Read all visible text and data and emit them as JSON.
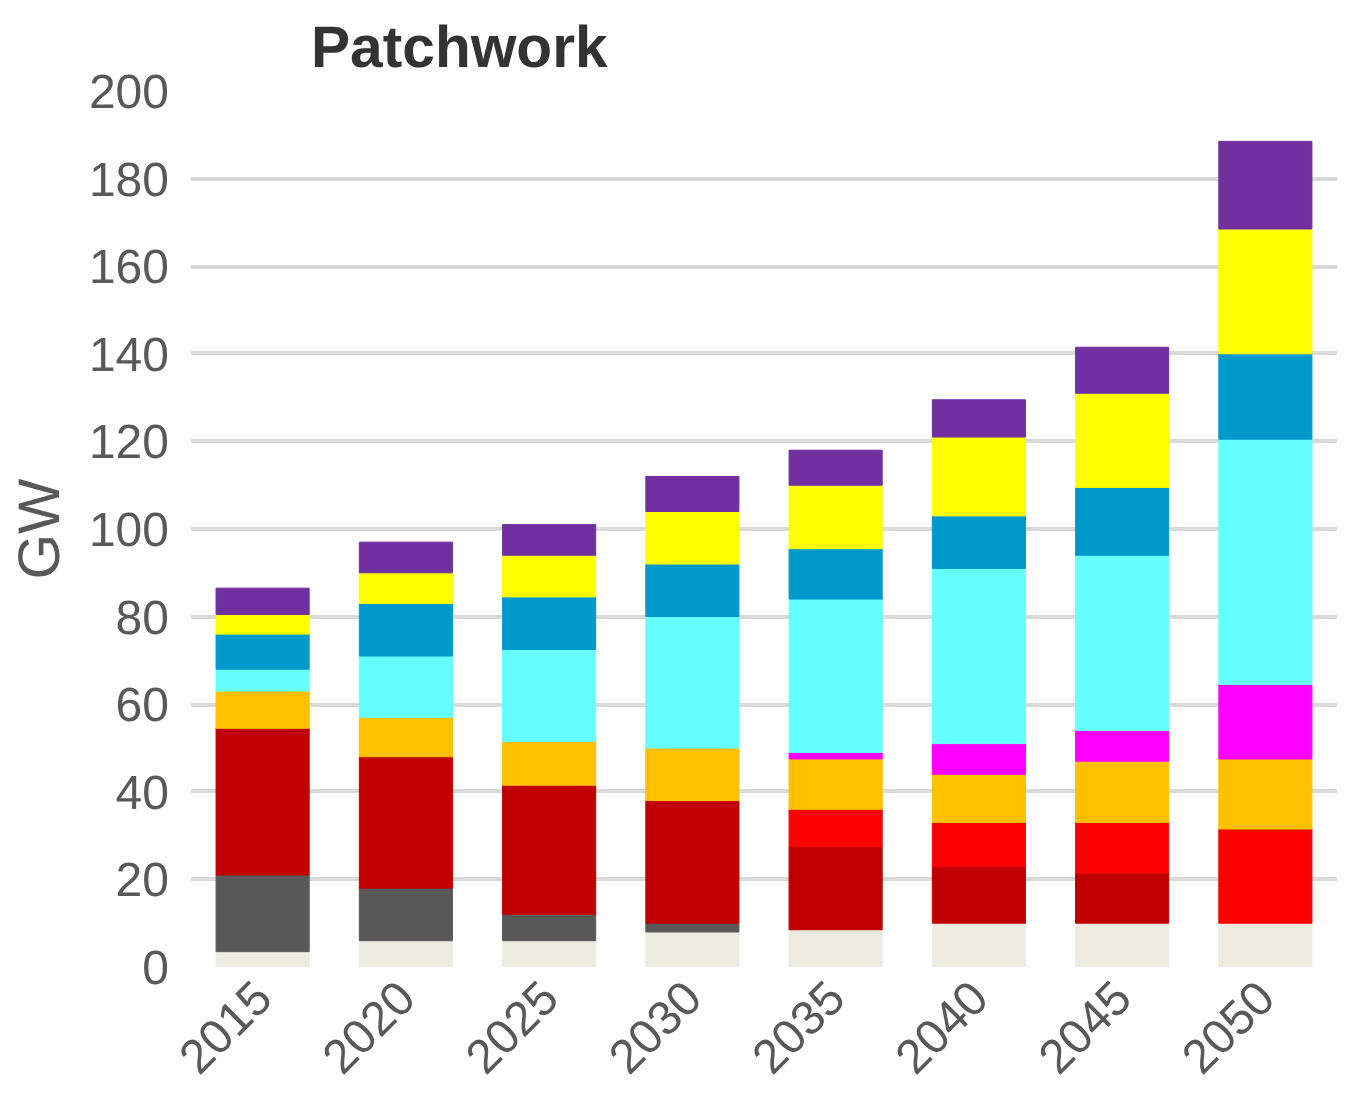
{
  "chart_data": {
    "type": "bar",
    "title": "Patchwork",
    "ylabel": "GW",
    "stacked": true,
    "grid": "y",
    "categories": [
      "2015",
      "2020",
      "2025",
      "2030",
      "2035",
      "2040",
      "2045",
      "2050"
    ],
    "ylim": [
      0,
      200
    ],
    "yticks": [
      0,
      20,
      40,
      60,
      80,
      100,
      120,
      140,
      160,
      180,
      200
    ],
    "series": [
      {
        "color": "#eeece1",
        "values": [
          3.5,
          6,
          6,
          8,
          8.5,
          10,
          10,
          10
        ]
      },
      {
        "color": "#595959",
        "values": [
          17.5,
          12,
          6,
          2,
          null,
          null,
          null,
          null
        ]
      },
      {
        "color": "#c00000",
        "values": [
          33.5,
          30,
          29.5,
          28,
          19,
          13,
          11.5,
          null
        ]
      },
      {
        "color": "#ff0000",
        "values": [
          null,
          null,
          null,
          null,
          8.5,
          10,
          11.5,
          21.5
        ]
      },
      {
        "color": "#ffc000",
        "values": [
          8.5,
          9,
          10,
          12,
          11.5,
          11,
          14,
          16
        ]
      },
      {
        "color": "#ff00ff",
        "values": [
          null,
          null,
          null,
          null,
          1.5,
          7,
          7,
          17
        ]
      },
      {
        "color": "#66ffff",
        "values": [
          5,
          14,
          21,
          30,
          35,
          40,
          40,
          56
        ]
      },
      {
        "color": "#0099cc",
        "values": [
          8,
          12,
          12,
          12,
          11.5,
          12,
          15.5,
          19.5
        ]
      },
      {
        "color": "#ffff00",
        "values": [
          4.5,
          7,
          9.5,
          12,
          14.5,
          18,
          21.5,
          28.5
        ]
      },
      {
        "color": "#7030a0",
        "values": [
          6,
          7,
          7,
          8,
          8,
          8.5,
          10.5,
          20
        ]
      }
    ]
  }
}
